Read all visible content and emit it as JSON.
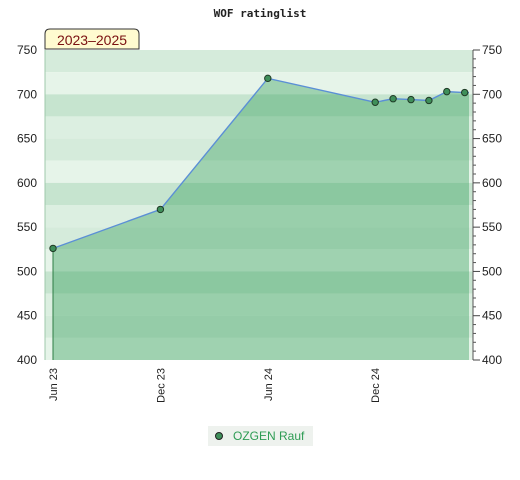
{
  "chart_data": {
    "type": "area",
    "title": "WOF ratinglist",
    "period_badge": "2023–2025",
    "xlabel": "",
    "ylabel": "",
    "x_ticks": [
      "Jun 23",
      "Dec 23",
      "Jun 24",
      "Dec 24"
    ],
    "ylim": [
      400,
      750
    ],
    "y_ticks": [
      400,
      450,
      500,
      550,
      600,
      650,
      700,
      750
    ],
    "grid": true,
    "legend_position": "bottom-center",
    "series": [
      {
        "name": "OZGEN Rauf",
        "color": "#2e9c54",
        "points": [
          {
            "x": "2023-06",
            "y": 526
          },
          {
            "x": "2023-12",
            "y": 570
          },
          {
            "x": "2024-06",
            "y": 718
          },
          {
            "x": "2024-12",
            "y": 691
          },
          {
            "x": "2025-01",
            "y": 695
          },
          {
            "x": "2025-02",
            "y": 694
          },
          {
            "x": "2025-03",
            "y": 693
          },
          {
            "x": "2025-04",
            "y": 703
          },
          {
            "x": "2025-05",
            "y": 702
          }
        ]
      }
    ]
  },
  "colors": {
    "line": "#5b8fd6",
    "point": "#3f8f5a",
    "area": "#2e9c54",
    "badge_bg": "#fffbd0"
  }
}
